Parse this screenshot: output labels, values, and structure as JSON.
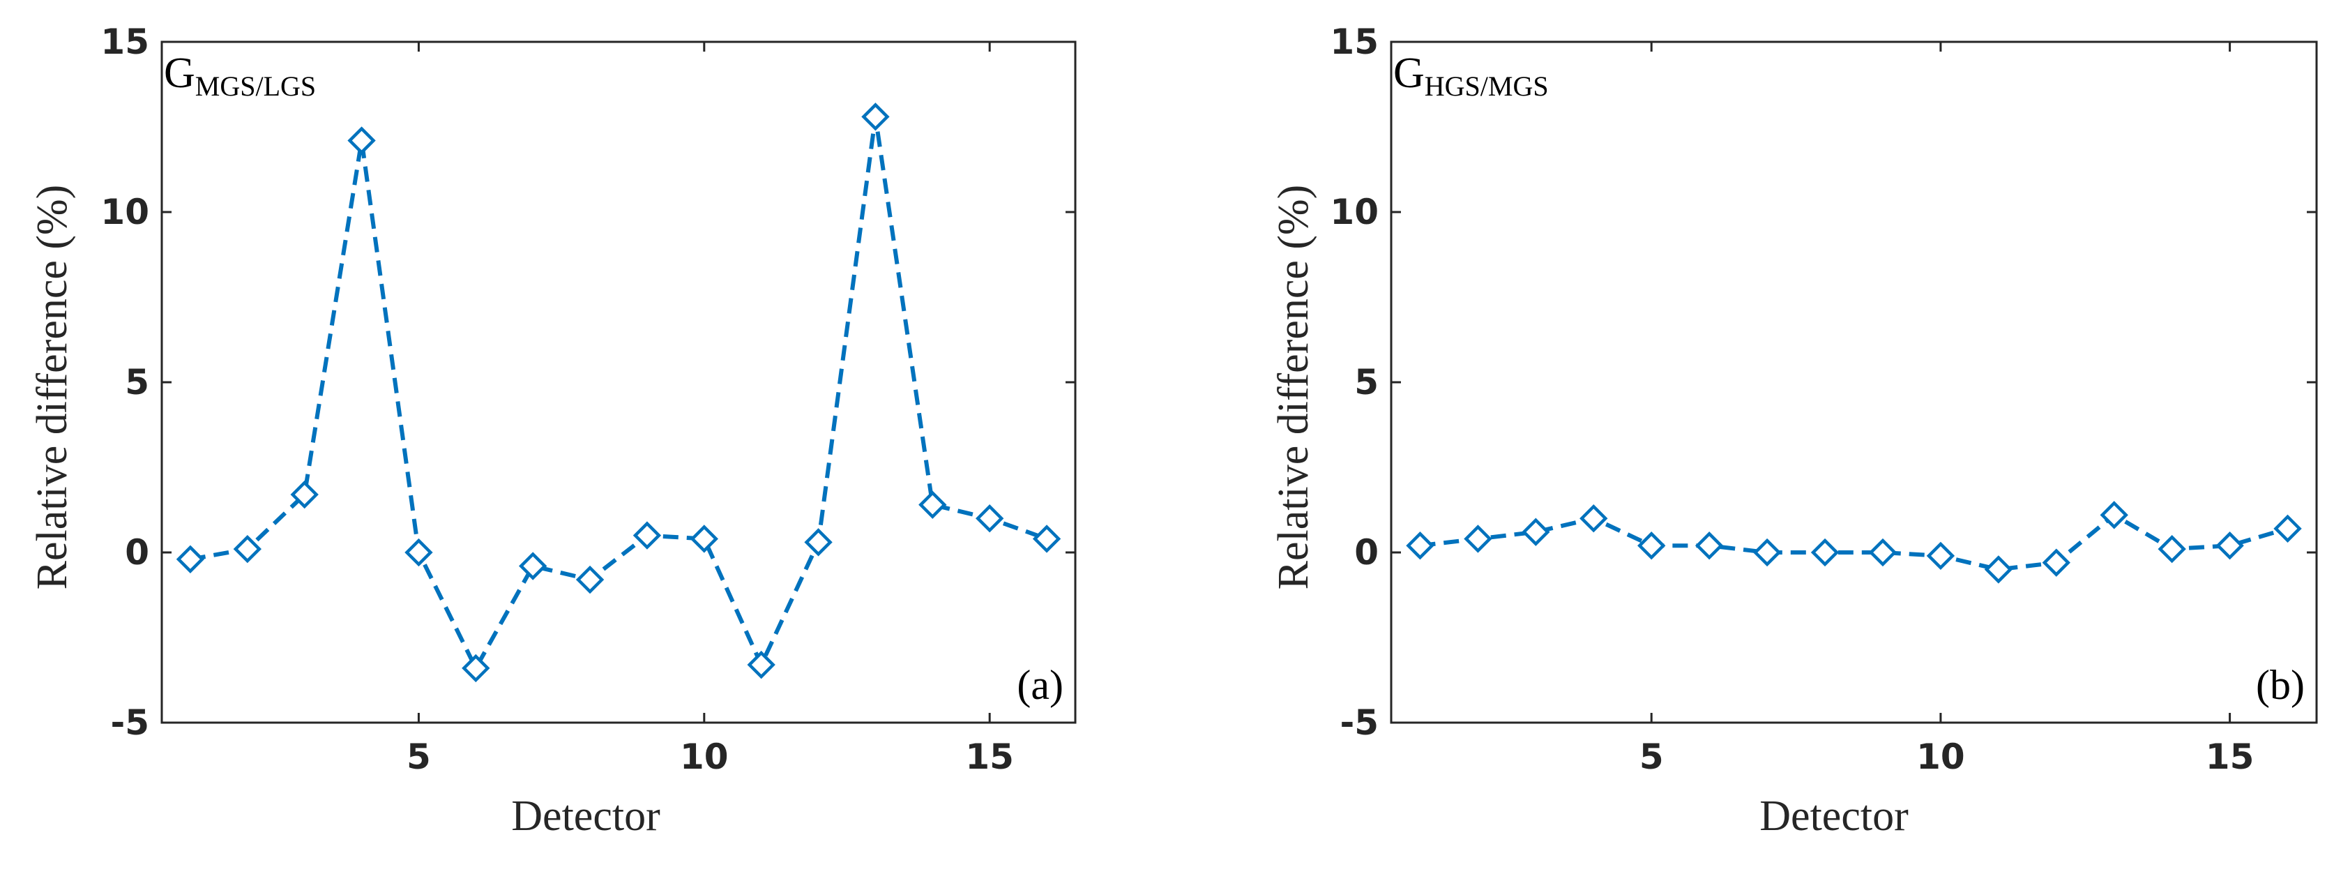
{
  "chart_data": [
    {
      "type": "line",
      "title_main": "G",
      "title_sub": "MGS/LGS",
      "panel_label": "(a)",
      "xlabel": "Detector",
      "ylabel": "Relative difference (%)",
      "xlim": [
        0.5,
        16.5
      ],
      "ylim": [
        -5,
        15
      ],
      "xticks": [
        5,
        10,
        15
      ],
      "yticks": [
        -5,
        0,
        5,
        10,
        15
      ],
      "x": [
        1,
        2,
        3,
        4,
        5,
        6,
        7,
        8,
        9,
        10,
        11,
        12,
        13,
        14,
        15,
        16
      ],
      "values": [
        -0.2,
        0.1,
        1.7,
        12.1,
        0.0,
        -3.4,
        -0.4,
        -0.8,
        0.5,
        0.4,
        -3.3,
        0.3,
        12.8,
        1.4,
        1.0,
        0.4
      ],
      "line_style": "dashed",
      "marker": "diamond",
      "color": "#0072BD"
    },
    {
      "type": "line",
      "title_main": "G",
      "title_sub": "HGS/MGS",
      "panel_label": "(b)",
      "xlabel": "Detector",
      "ylabel": "Relative difference (%)",
      "xlim": [
        0.5,
        16.5
      ],
      "ylim": [
        -5,
        15
      ],
      "xticks": [
        5,
        10,
        15
      ],
      "yticks": [
        -5,
        0,
        5,
        10,
        15
      ],
      "x": [
        1,
        2,
        3,
        4,
        5,
        6,
        7,
        8,
        9,
        10,
        11,
        12,
        13,
        14,
        15,
        16
      ],
      "values": [
        0.2,
        0.4,
        0.6,
        1.0,
        0.2,
        0.2,
        0.0,
        0.0,
        0.0,
        -0.1,
        -0.5,
        -0.3,
        1.1,
        0.1,
        0.2,
        0.7
      ],
      "line_style": "dashed",
      "marker": "diamond",
      "color": "#0072BD"
    }
  ]
}
